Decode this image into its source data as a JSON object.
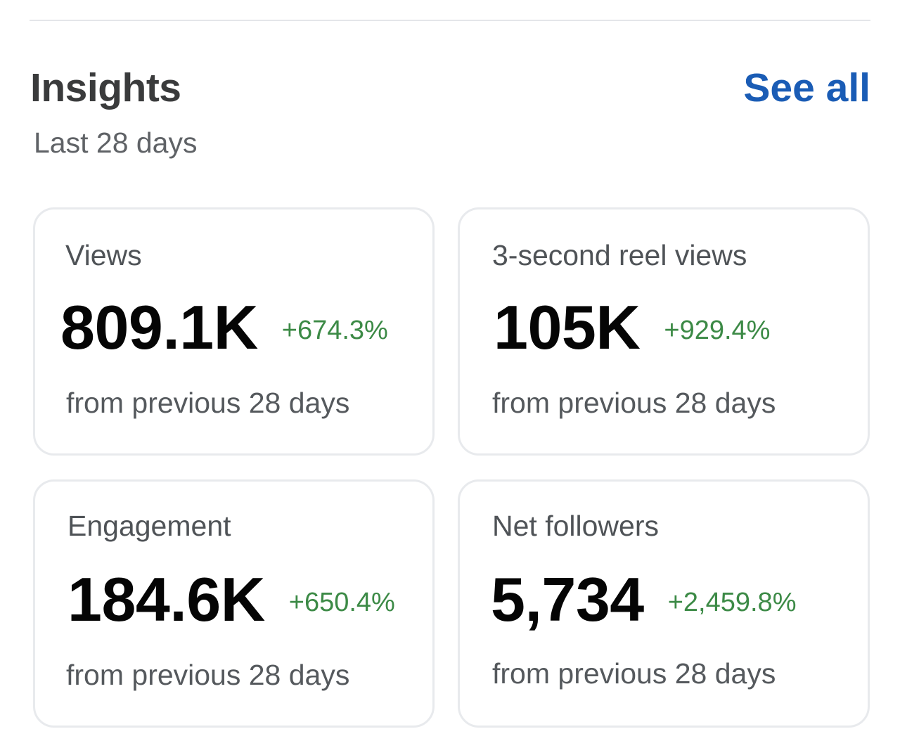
{
  "header": {
    "title": "Insights",
    "subtitle": "Last 28 days",
    "see_all_label": "See all"
  },
  "cards": [
    {
      "label": "Views",
      "value": "809.1K",
      "change": "+674.3%",
      "note": "from previous 28 days"
    },
    {
      "label": "3-second reel views",
      "value": "105K",
      "change": "+929.4%",
      "note": "from previous 28 days"
    },
    {
      "label": "Engagement",
      "value": "184.6K",
      "change": "+650.4%",
      "note": "from previous 28 days"
    },
    {
      "label": "Net followers",
      "value": "5,734",
      "change": "+2,459.8%",
      "note": "from previous 28 days"
    }
  ],
  "colors": {
    "accent": "#1a5cb5",
    "positive_change": "#3c8a46",
    "card_border": "#e8eaed"
  }
}
